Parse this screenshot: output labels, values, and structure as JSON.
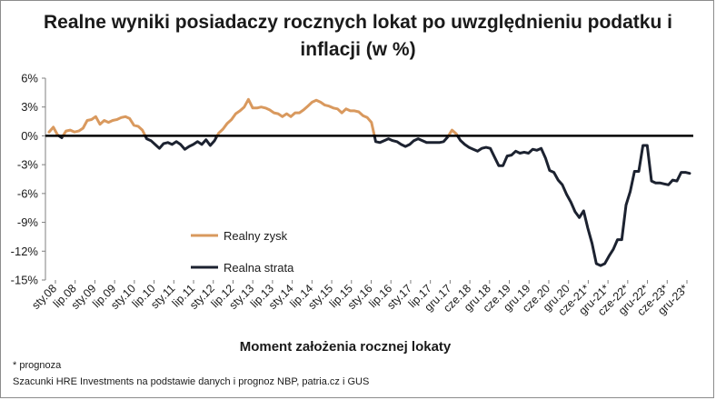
{
  "title": "Realne wyniki posiadaczy rocznych lokat po uwzględnieniu podatku i inflacji (w %)",
  "xlabel": "Moment założenia rocznej lokaty",
  "footnotes": {
    "forecast": "* prognoza",
    "source": "Szacunki HRE Investments na podstawie danych i prognoz NBP,  patria.cz  i GUS"
  },
  "colors": {
    "gain": "#D9995E",
    "loss": "#1C2230",
    "zero_line": "#000000"
  },
  "chart_data": {
    "type": "line",
    "title": "Realne wyniki posiadaczy rocznych lokat po uwzględnieniu podatku i inflacji (w %)",
    "xlabel": "Moment założenia rocznej lokaty",
    "ylabel": "",
    "ylim": [
      -15,
      6
    ],
    "yticks": [
      6,
      3,
      0,
      -3,
      -6,
      -9,
      -12,
      -15
    ],
    "yticklabels": [
      "6%",
      "3%",
      "0%",
      "-3%",
      "-6%",
      "-9%",
      "-12%",
      "-15%"
    ],
    "xtick_labels": [
      "sty.08",
      "lip.08",
      "sty.09",
      "lip.09",
      "sty.10",
      "lip.10",
      "sty.11",
      "lip.11",
      "sty.12",
      "lip.12",
      "sty.13",
      "lip.13",
      "sty.14",
      "lip.14",
      "sty.15",
      "lip.15",
      "sty.16",
      "lip.16",
      "sty.17",
      "lip.17",
      "gru.17",
      "cze.18",
      "gru.18",
      "cze.19",
      "gru.19",
      "cze.20",
      "gru.20",
      "cze-21*",
      "gru-21*",
      "cze-22*",
      "gru-22*",
      "cze-23*",
      "gru-23*"
    ],
    "legend": {
      "placement": "center-left",
      "entries": [
        "Realny zysk",
        "Realna strata"
      ]
    },
    "series": [
      {
        "name": "Realny zysk",
        "description": "positive part of real return (values above 0%)"
      },
      {
        "name": "Realna strata",
        "description": "negative part of real return (values below 0%)"
      }
    ],
    "values": [
      0.4,
      0.9,
      0.1,
      -0.2,
      0.5,
      0.6,
      0.4,
      0.5,
      0.8,
      1.6,
      1.7,
      2.0,
      1.2,
      1.6,
      1.4,
      1.6,
      1.7,
      1.9,
      2.0,
      1.8,
      1.1,
      1.0,
      0.6,
      -0.3,
      -0.5,
      -0.9,
      -1.3,
      -0.8,
      -0.7,
      -0.9,
      -0.6,
      -0.9,
      -1.4,
      -1.1,
      -0.9,
      -0.6,
      -0.9,
      -0.4,
      -1.0,
      -0.5,
      0.3,
      0.7,
      1.3,
      1.7,
      2.3,
      2.6,
      3.0,
      3.8,
      2.9,
      2.9,
      3.0,
      2.9,
      2.7,
      2.4,
      2.3,
      2.0,
      2.3,
      2.0,
      2.4,
      2.4,
      2.7,
      3.1,
      3.5,
      3.7,
      3.5,
      3.2,
      3.1,
      2.9,
      2.8,
      2.4,
      2.8,
      2.6,
      2.6,
      2.5,
      2.1,
      1.9,
      1.4,
      -0.6,
      -0.7,
      -0.5,
      -0.3,
      -0.5,
      -0.6,
      -0.9,
      -1.1,
      -0.9,
      -0.5,
      -0.3,
      -0.5,
      -0.7,
      -0.7,
      -0.7,
      -0.7,
      -0.6,
      -0.1,
      0.6,
      0.2,
      -0.5,
      -0.9,
      -1.2,
      -1.4,
      -1.6,
      -1.3,
      -1.2,
      -1.3,
      -2.2,
      -3.1,
      -3.1,
      -2.1,
      -2.0,
      -1.6,
      -1.8,
      -1.7,
      -1.8,
      -1.4,
      -1.5,
      -1.3,
      -2.3,
      -3.6,
      -3.8,
      -4.6,
      -5.1,
      -6.1,
      -6.9,
      -7.9,
      -8.5,
      -7.8,
      -9.6,
      -11.2,
      -13.3,
      -13.5,
      -13.3,
      -12.5,
      -11.8,
      -10.8,
      -10.8,
      -7.2,
      -5.8,
      -3.7,
      -3.7,
      -1.0,
      -1.0,
      -4.7,
      -4.9,
      -4.9,
      -5.0,
      -5.1,
      -4.6,
      -4.7,
      -3.8,
      -3.8,
      -3.9
    ]
  }
}
